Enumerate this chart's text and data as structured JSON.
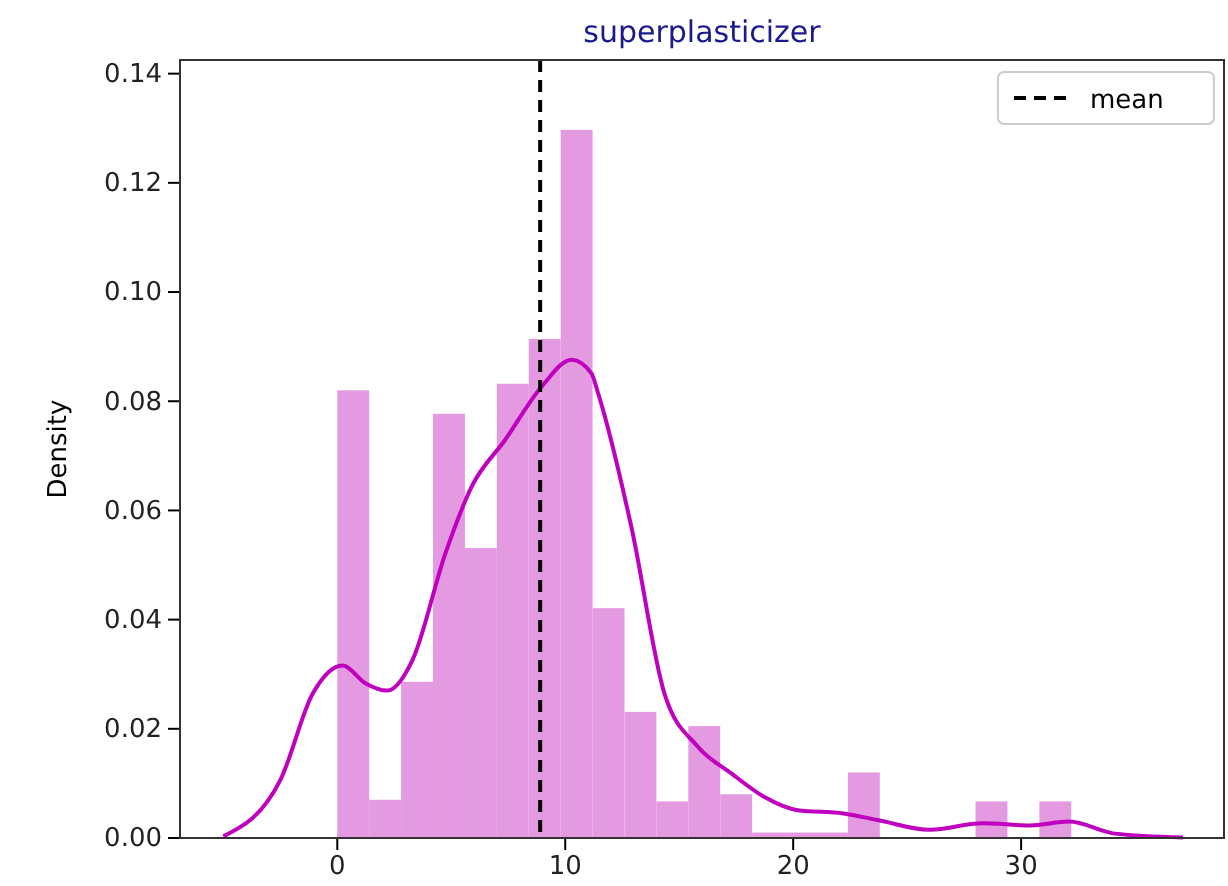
{
  "chart_data": {
    "type": "histogram",
    "title": "superplasticizer",
    "ylabel": "Density",
    "bins": [
      0,
      1.4,
      2.8,
      4.2,
      5.6,
      7.0,
      8.4,
      9.8,
      11.2,
      12.6,
      14.0,
      15.4,
      16.8,
      18.2,
      19.6,
      21.0,
      22.4,
      23.8,
      25.2,
      26.6,
      28.0,
      29.4,
      30.8,
      32.2
    ],
    "values": [
      0.082,
      0.007,
      0.0286,
      0.0777,
      0.0531,
      0.0832,
      0.0914,
      0.1297,
      0.0421,
      0.0231,
      0.0067,
      0.0205,
      0.008,
      0.001,
      0.001,
      0.001,
      0.012,
      0,
      0,
      0,
      0.0067,
      0,
      0.0067
    ],
    "color": "#e49ae0",
    "series": [
      {
        "type": "line",
        "color": "#bf00bf",
        "x": [
          -5.0,
          -2.5,
          -1.07,
          0.23,
          1.25,
          2.18,
          3.3,
          4.74,
          5.9,
          7.36,
          8.97,
          10.28,
          11.15,
          11.44,
          12.9,
          14.35,
          15.8,
          17.3,
          18.7,
          20.2,
          22.2,
          23.7,
          26.0,
          28.3,
          30.4,
          32.1,
          34.1,
          37.1
        ],
        "values": [
          0.0003,
          0.0106,
          0.0265,
          0.0316,
          0.0283,
          0.027,
          0.0326,
          0.0521,
          0.0644,
          0.0729,
          0.0827,
          0.0876,
          0.0851,
          0.0815,
          0.057,
          0.0265,
          0.0168,
          0.0118,
          0.0076,
          0.0051,
          0.0045,
          0.0033,
          0.0015,
          0.0027,
          0.0023,
          0.003,
          0.0008,
          0.0001
        ]
      }
    ],
    "ref_lines": [
      {
        "axis": "x",
        "value": 8.9,
        "label": "mean",
        "color": "#000000",
        "line_style": "dashed"
      }
    ],
    "xlim": [
      -6.9,
      38.9
    ],
    "ylim": [
      0,
      0.1425
    ],
    "xticks": [
      0,
      10,
      20,
      30
    ],
    "yticks": [
      {
        "value": 0,
        "label": "0.00"
      },
      {
        "value": 0.02,
        "label": "0.02"
      },
      {
        "value": 0.04,
        "label": "0.04"
      },
      {
        "value": 0.06,
        "label": "0.06"
      },
      {
        "value": 0.08,
        "label": "0.08"
      },
      {
        "value": 0.1,
        "label": "0.10"
      },
      {
        "value": 0.12,
        "label": "0.12"
      },
      {
        "value": 0.14,
        "label": "0.14"
      }
    ],
    "legend": "top right",
    "grid": false
  }
}
